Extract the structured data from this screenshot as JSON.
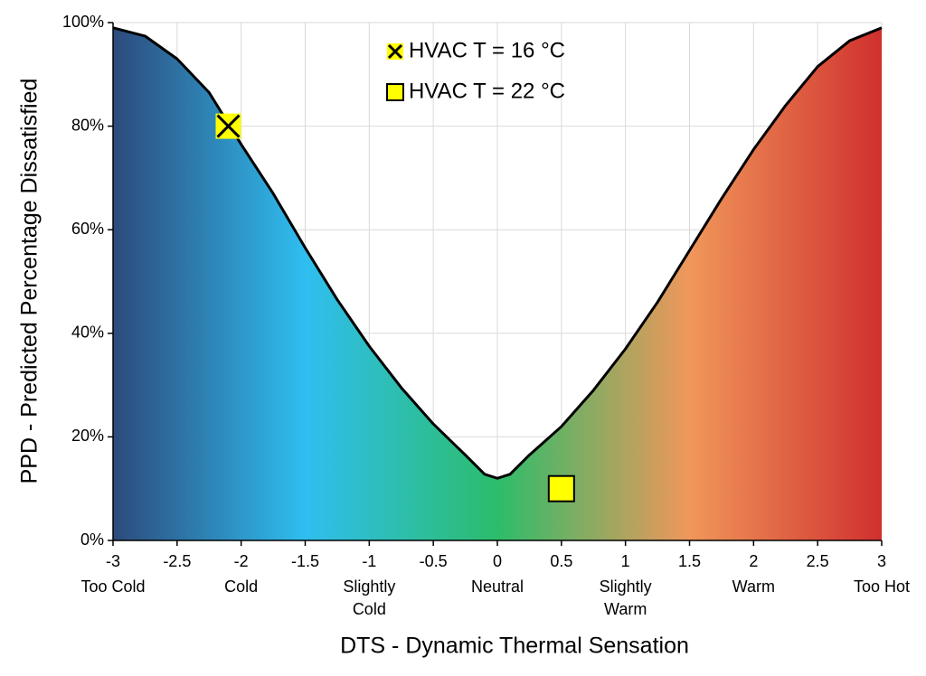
{
  "chart_data": {
    "type": "area",
    "xlabel": "DTS - Dynamic Thermal Sensation",
    "ylabel": "PPD - Predicted Percentage Dissatisfied",
    "xlim": [
      -3,
      3
    ],
    "ylim": [
      0,
      100
    ],
    "xticks": [
      -3,
      -2.5,
      -2,
      -1.5,
      -1,
      -0.5,
      0,
      0.5,
      1,
      1.5,
      2,
      2.5,
      3
    ],
    "yticks": [
      {
        "value": 0,
        "label": "0%"
      },
      {
        "value": 20,
        "label": "20%"
      },
      {
        "value": 40,
        "label": "40%"
      },
      {
        "value": 60,
        "label": "60%"
      },
      {
        "value": 80,
        "label": "80%"
      },
      {
        "value": 100,
        "label": "100%"
      }
    ],
    "x_category_labels": [
      {
        "value": -3,
        "label": [
          "Too Cold"
        ]
      },
      {
        "value": -2,
        "label": [
          "Cold"
        ]
      },
      {
        "value": -1,
        "label": [
          "Slightly",
          "Cold"
        ]
      },
      {
        "value": 0,
        "label": [
          "Neutral"
        ]
      },
      {
        "value": 1,
        "label": [
          "Slightly",
          "Warm"
        ]
      },
      {
        "value": 2,
        "label": [
          "Warm"
        ]
      },
      {
        "value": 3,
        "label": [
          "Too Hot"
        ]
      }
    ],
    "grid": true,
    "curve": {
      "color": "#000000",
      "x": [
        -3,
        -2.75,
        -2.5,
        -2.25,
        -2,
        -1.75,
        -1.5,
        -1.25,
        -1,
        -0.75,
        -0.5,
        -0.25,
        -0.1,
        0,
        0.1,
        0.25,
        0.5,
        0.75,
        1,
        1.25,
        1.5,
        1.75,
        2,
        2.25,
        2.5,
        2.75,
        3
      ],
      "values": [
        99,
        97.4,
        93,
        86.5,
        76.5,
        67,
        56.5,
        46.5,
        37.5,
        29.5,
        22.5,
        16.5,
        12.8,
        12,
        12.8,
        16.5,
        22,
        29,
        37,
        46,
        56,
        66,
        75.5,
        84,
        91.5,
        96.5,
        99
      ]
    },
    "series": [
      {
        "name": "HVAC T = 16 °C",
        "marker": "x",
        "color": "#ffff00",
        "x": [
          -2.1
        ],
        "values": [
          80
        ]
      },
      {
        "name": "HVAC T = 22 °C",
        "marker": "square",
        "color": "#ffff00",
        "x": [
          0.5
        ],
        "values": [
          10
        ]
      }
    ]
  }
}
